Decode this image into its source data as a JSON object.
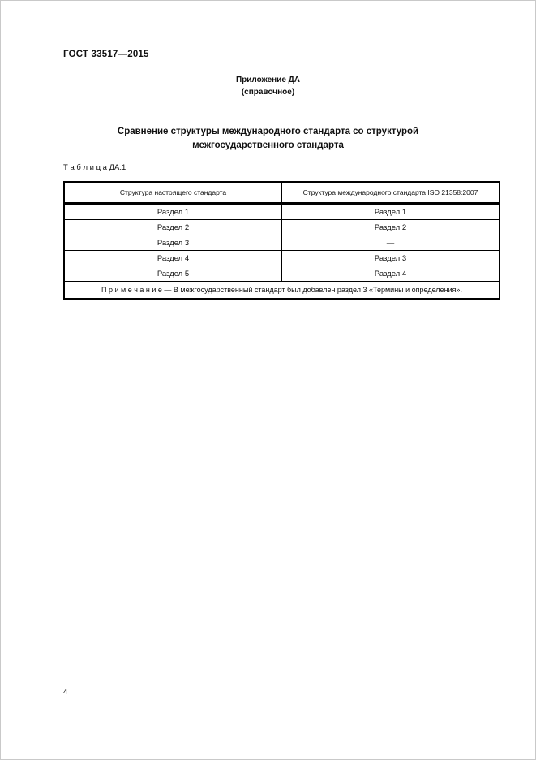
{
  "page": {
    "doc_code": "ГОСТ 33517—2015",
    "appendix_title": "Приложение ДА",
    "appendix_subtitle": "(справочное)",
    "section_title_line1": "Сравнение структуры международного стандарта со структурой",
    "section_title_line2": "межгосударственного стандарта",
    "table_label": "Т а б л и ц а  ДА.1",
    "page_number": "4"
  },
  "table": {
    "headers": [
      "Структура настоящего стандарта",
      "Структура международного стандарта ISO 21358:2007"
    ],
    "rows": [
      [
        "Раздел 1",
        "Раздел 1"
      ],
      [
        "Раздел 2",
        "Раздел 2"
      ],
      [
        "Раздел 3",
        "—"
      ],
      [
        "Раздел 4",
        "Раздел 3"
      ],
      [
        "Раздел 5",
        "Раздел 4"
      ]
    ],
    "note": "П р и м е ч а н и е — В межгосударственный стандарт был добавлен раздел 3 «Термины и определения»."
  }
}
